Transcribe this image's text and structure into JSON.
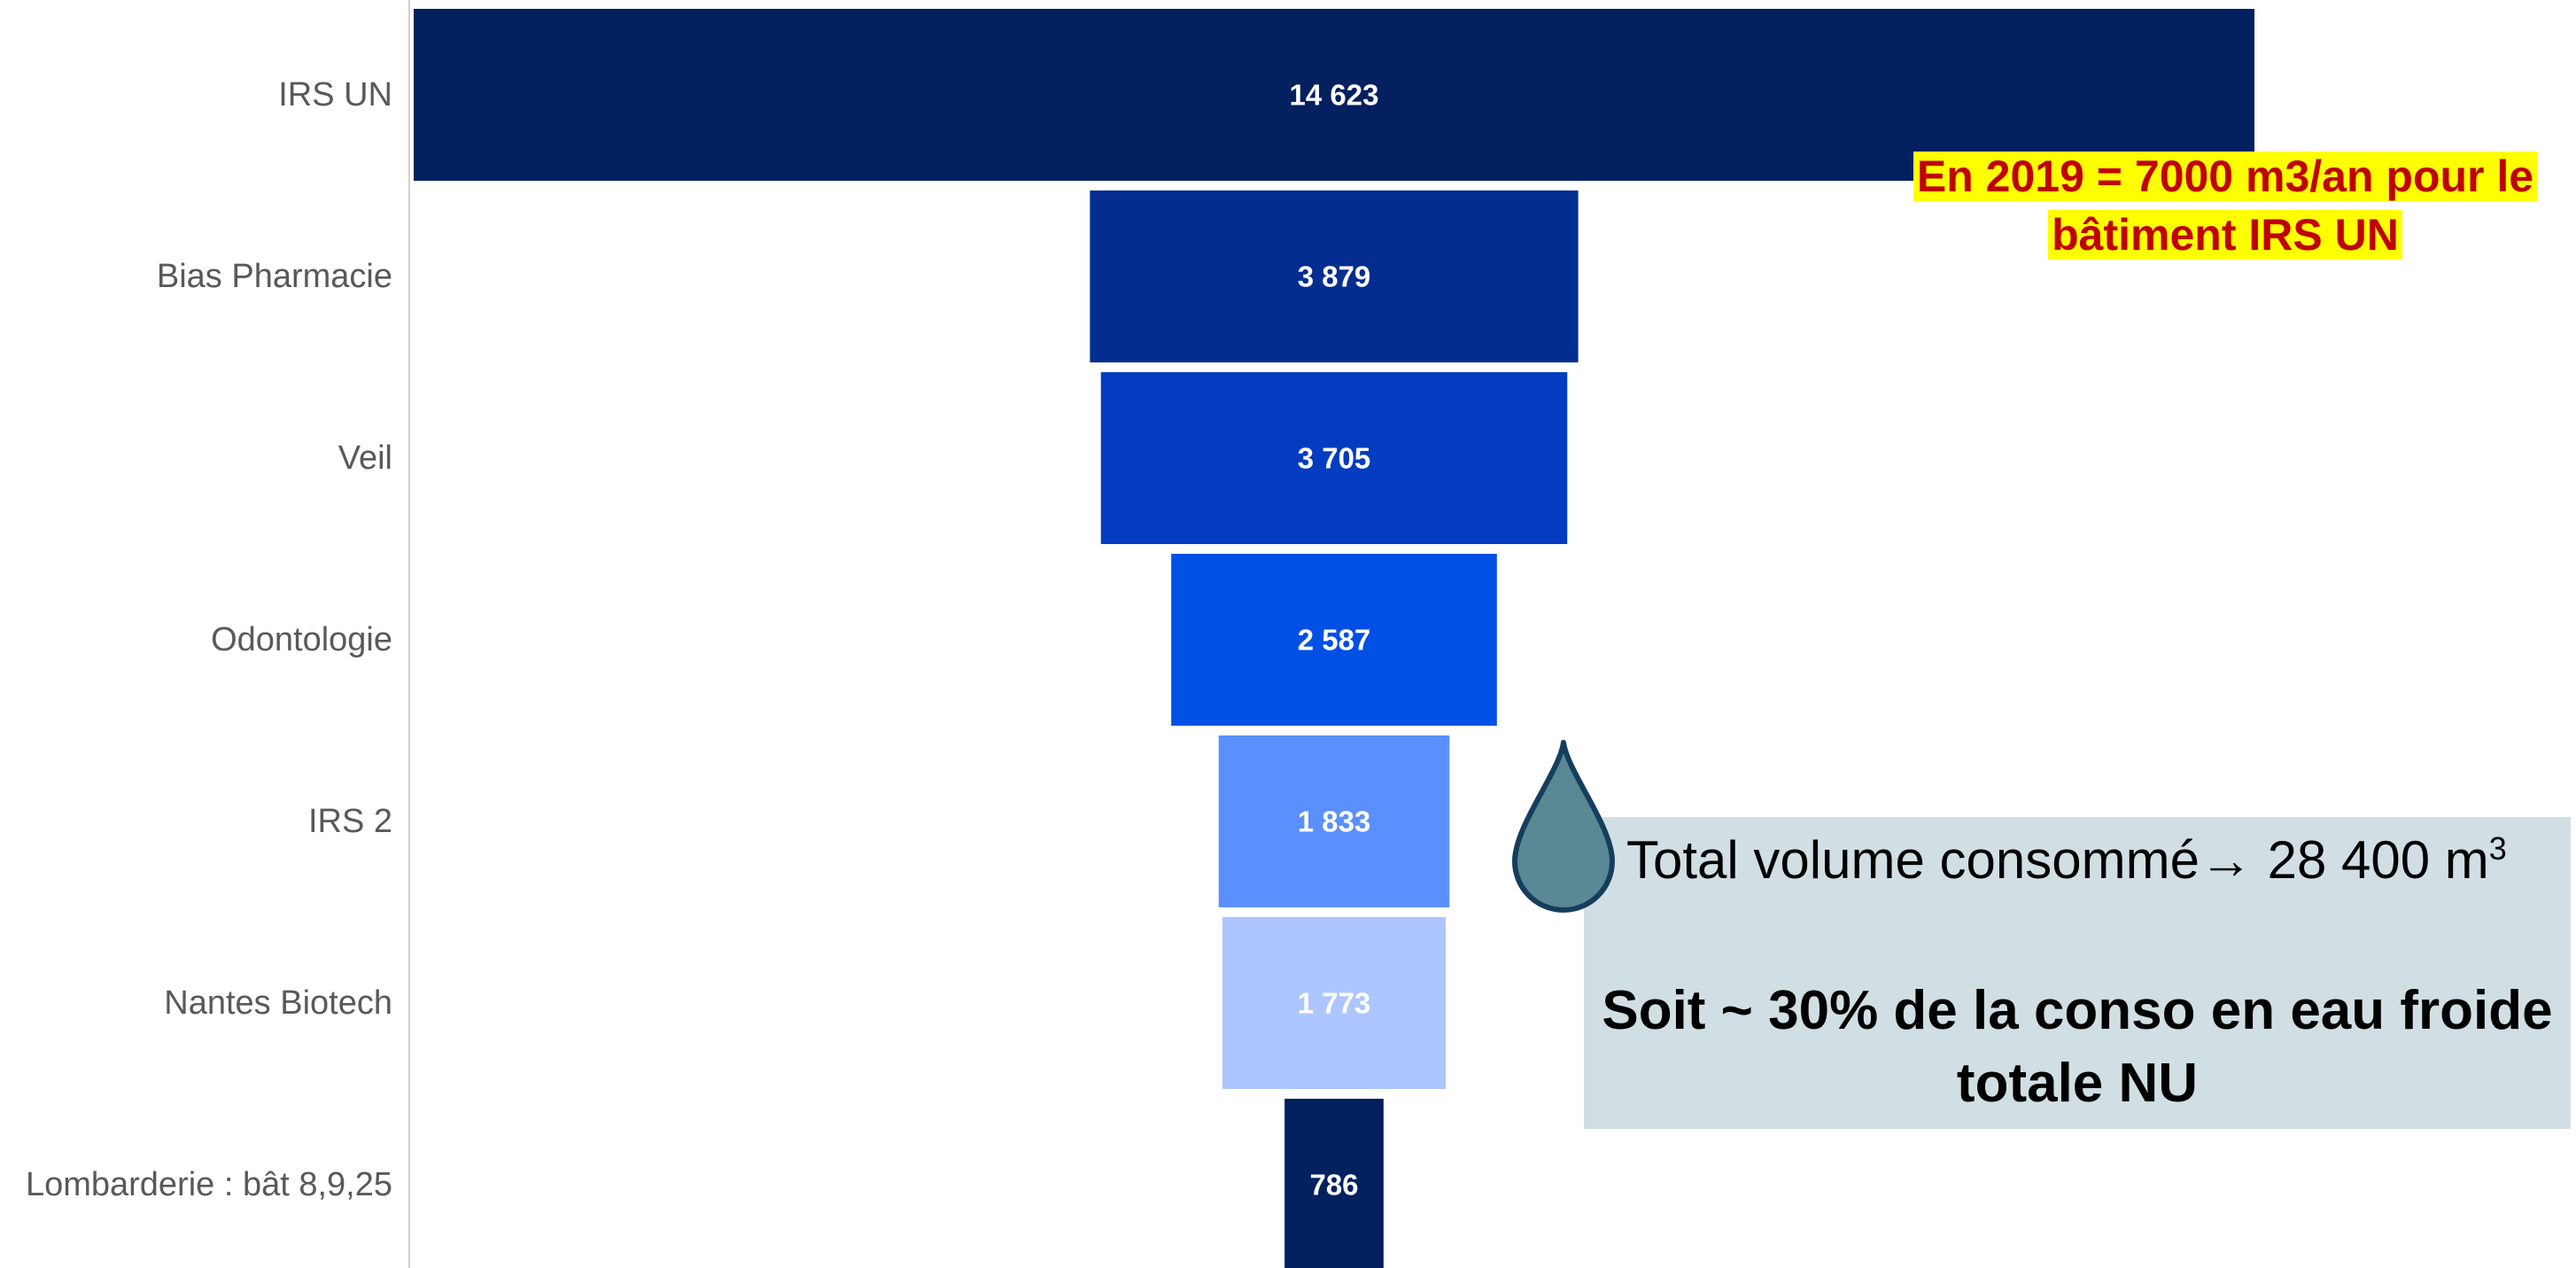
{
  "chart_data": {
    "type": "bar",
    "subtype": "funnel",
    "categories": [
      "IRS UN",
      "Bias Pharmacie",
      "Veil",
      "Odontologie",
      "IRS 2",
      "Nantes Biotech",
      "Lombarderie : bât 8,9,25"
    ],
    "values": [
      14623,
      3879,
      3705,
      2587,
      1833,
      1773,
      786
    ],
    "value_labels": [
      "14 623",
      "3 879",
      "3 705",
      "2 587",
      "1 833",
      "1 773",
      "786"
    ],
    "colors": [
      "#03205f",
      "#032d8f",
      "#033cc0",
      "#0050e6",
      "#5b8ffd",
      "#adc6ff",
      "#03205f"
    ],
    "label_colors": [
      "#ffffff",
      "#ffffff",
      "#ffffff",
      "#ffffff",
      "#ffffff",
      "#ffffff",
      "#ffffff"
    ],
    "title": "",
    "xlabel": "",
    "ylabel": "",
    "grid": false,
    "legend": "none"
  },
  "annotations": {
    "note_2019_line1": "En 2019 = 7000 m3/an pour le",
    "note_2019_line2": "bâtiment IRS UN",
    "total_text": "Total volume consommé→ 28 400 m",
    "total_unit_exp": "3",
    "share_line1": "Soit ~ 30% de la conso en eau froide",
    "share_line2": "totale NU"
  },
  "icons": {
    "drop": "water-drop-icon"
  },
  "colors": {
    "annotation_red": "#c00000",
    "highlight_yellow": "#ffff00",
    "box_bg": "#d1dfe4",
    "drop_fill": "#5a8895",
    "drop_stroke": "#163e5c",
    "axis": "#d0d0d0",
    "category_text": "#595959"
  }
}
